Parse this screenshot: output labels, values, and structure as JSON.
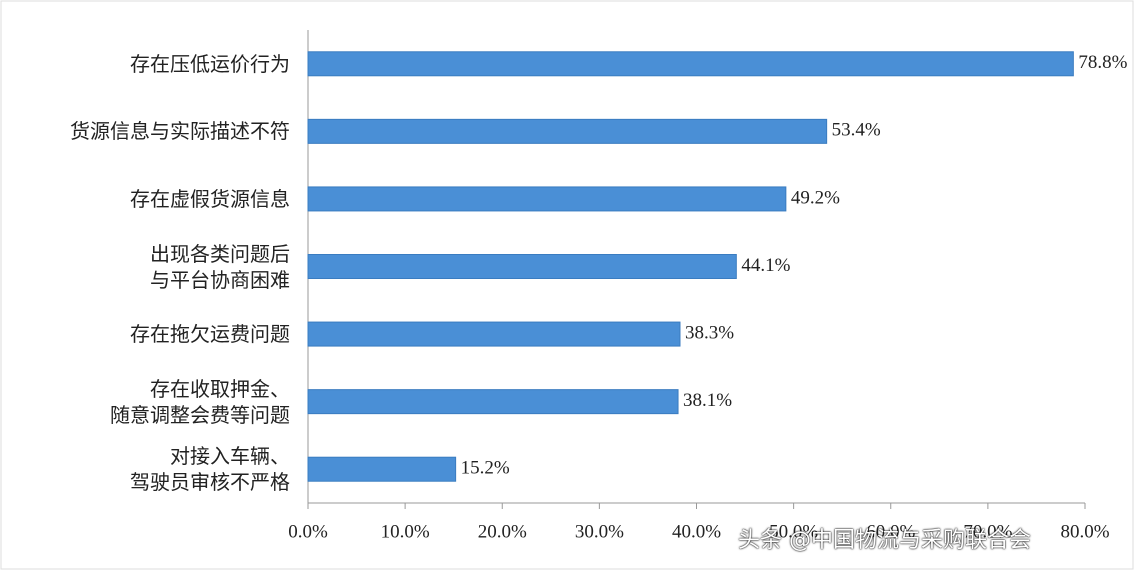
{
  "chart_data": {
    "type": "bar",
    "orientation": "horizontal",
    "categories": [
      "存在压低运价行为",
      "货源信息与实际描述不符",
      "存在虚假货源信息",
      "出现各类问题后\n与平台协商困难",
      "存在拖欠运费问题",
      "存在收取押金、\n随意调整会费等问题",
      "对接入车辆、\n驾驶员审核不严格"
    ],
    "values": [
      78.8,
      53.4,
      49.2,
      44.1,
      38.3,
      38.1,
      15.2
    ],
    "value_labels": [
      "78.8%",
      "53.4%",
      "49.2%",
      "44.1%",
      "38.3%",
      "38.1%",
      "15.2%"
    ],
    "color": "#4a8fd6",
    "xlim": [
      0,
      80
    ],
    "xticks": [
      {
        "value": 0,
        "label": "0.0%"
      },
      {
        "value": 10,
        "label": "10.0%"
      },
      {
        "value": 20,
        "label": "20.0%"
      },
      {
        "value": 30,
        "label": "30.0%"
      },
      {
        "value": 40,
        "label": "40.0%"
      },
      {
        "value": 50,
        "label": "50.0%"
      },
      {
        "value": 60,
        "label": "60.0%"
      },
      {
        "value": 70,
        "label": "70.0%"
      },
      {
        "value": 80,
        "label": "80.0%"
      }
    ],
    "grid": false
  },
  "watermark": "头条 @中国物流与采购联合会"
}
